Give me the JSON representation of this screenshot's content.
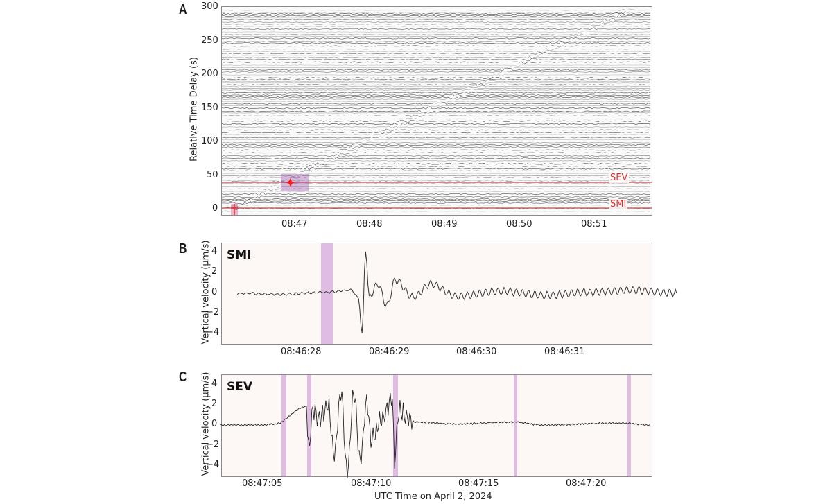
{
  "figure": {
    "xlabel": "UTC Time on April 2, 2024"
  },
  "panels": {
    "A": {
      "letter": "A",
      "ylabel": "Relative Time Delay (s)",
      "yticks": [
        "300",
        "250",
        "200",
        "150",
        "100",
        "50",
        "0"
      ],
      "xticks": [
        "08:47",
        "08:48",
        "08:49",
        "08:50",
        "08:51"
      ],
      "station_labels": {
        "sev": "SEV",
        "smi": "SMI"
      }
    },
    "B": {
      "letter": "B",
      "title": "SMI",
      "ylabel": "Vertical velocity (μm/s)",
      "yticks": [
        "4",
        "2",
        "0",
        "−2",
        "−4"
      ],
      "xticks": [
        "08:46:28",
        "08:46:29",
        "08:46:30",
        "08:46:31"
      ]
    },
    "C": {
      "letter": "C",
      "title": "SEV",
      "ylabel": "Vertical velocity (μm/s)",
      "yticks": [
        "4",
        "2",
        "0",
        "−2",
        "−4"
      ],
      "xticks": [
        "08:47:05",
        "08:47:10",
        "08:47:15",
        "08:47:20"
      ]
    }
  },
  "colors": {
    "trace": "#222222",
    "highlight": "#d9b3de",
    "station_line": "#e05050",
    "panel_bg": "#fdf8f6",
    "frame": "#8a8a8a"
  },
  "chart_data": [
    {
      "type": "heatmap",
      "panel": "A",
      "title": "",
      "description": "Record section of many seismic traces stacked by relative time delay; a diagonal moveout of arrivals from ~08:46:28 (0 s) to ~08:51:05 (~285 s)",
      "xlabel": "",
      "ylabel": "Relative Time Delay (s)",
      "ylim": [
        -8,
        300
      ],
      "xlim": [
        "08:46:20",
        "08:51:32"
      ],
      "yticks": [
        0,
        50,
        100,
        150,
        200,
        250,
        300
      ],
      "xticks": [
        "08:47",
        "08:48",
        "08:49",
        "08:50",
        "08:51"
      ],
      "moveout": {
        "x": [
          "08:46:28",
          "08:47:05",
          "08:48:00",
          "08:49:00",
          "08:50:00",
          "08:51:05"
        ],
        "y": [
          0,
          38,
          98,
          160,
          220,
          285
        ]
      },
      "annotations": [
        {
          "text": "SEV",
          "y": 38,
          "color": "#e03030"
        },
        {
          "text": "SMI",
          "y": 0,
          "color": "#e03030"
        }
      ],
      "markers": [
        {
          "label": "SMI pick",
          "x": "08:46:28",
          "y": 0,
          "shape": "cross",
          "color": "#e03030"
        },
        {
          "label": "SEV pick",
          "x": "08:47:06",
          "y": 38,
          "shape": "star",
          "color": "#e03030"
        }
      ],
      "grid": false
    },
    {
      "type": "line",
      "panel": "B",
      "title": "SMI",
      "xlabel": "",
      "ylabel": "Vertical velocity (μm/s)",
      "ylim": [
        -5,
        5
      ],
      "xticks": [
        "08:46:28",
        "08:46:29",
        "08:46:30",
        "08:46:31"
      ],
      "series": [
        {
          "name": "SMI",
          "x_s": [
            27.0,
            27.5,
            28.0,
            28.3,
            28.38,
            28.42,
            28.46,
            28.5,
            28.6,
            28.7,
            28.8,
            29.0,
            29.2,
            29.5,
            30.0,
            30.5,
            31.0,
            31.5,
            32.0
          ],
          "values": [
            0.0,
            -0.1,
            0.1,
            0.3,
            -0.5,
            -4.0,
            4.2,
            -0.3,
            0.9,
            -1.2,
            1.3,
            -0.4,
            0.9,
            -0.3,
            0.2,
            -0.2,
            0.1,
            0.3,
            0.0
          ]
        }
      ],
      "highlight_spans": [
        [
          "08:46:28.32",
          "08:46:28.45"
        ]
      ],
      "grid": false
    },
    {
      "type": "line",
      "panel": "C",
      "title": "SEV",
      "xlabel": "UTC Time on April 2, 2024",
      "ylabel": "Vertical velocity (μm/s)",
      "ylim": [
        -5,
        5
      ],
      "xticks": [
        "08:47:05",
        "08:47:10",
        "08:47:15",
        "08:47:20"
      ],
      "series": [
        {
          "name": "SEV",
          "x_s": [
            3.0,
            5.0,
            5.5,
            7.0,
            7.1,
            7.3,
            7.6,
            8.0,
            8.3,
            8.6,
            8.9,
            9.2,
            9.5,
            9.8,
            10.0,
            10.5,
            11.0,
            11.1,
            11.3,
            12.0,
            14.0,
            16.6,
            18.0,
            21.7,
            23.0
          ],
          "values": [
            0.0,
            0.0,
            0.1,
            1.8,
            -2.5,
            1.5,
            0.5,
            2.0,
            -2.8,
            3.2,
            -4.8,
            3.3,
            -3.6,
            2.3,
            -1.5,
            0.6,
            2.6,
            -3.7,
            1.4,
            0.3,
            0.1,
            0.3,
            0.0,
            0.2,
            0.0
          ]
        }
      ],
      "highlight_spans": [
        [
          "08:47:05.6",
          "08:47:05.8"
        ],
        [
          "08:47:07.0",
          "08:47:07.1"
        ],
        [
          "08:47:10.9",
          "08:47:11.1"
        ],
        [
          "08:47:16.6",
          "08:47:16.7"
        ],
        [
          "08:47:21.6",
          "08:47:21.7"
        ]
      ],
      "grid": false
    }
  ]
}
